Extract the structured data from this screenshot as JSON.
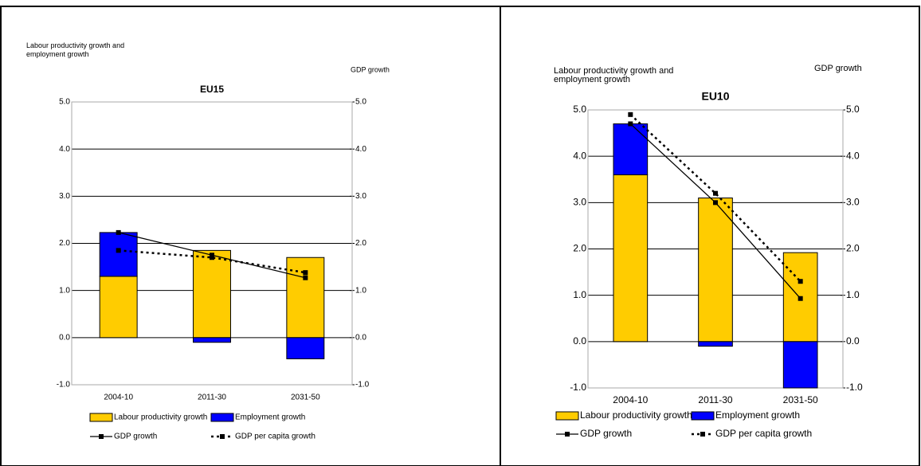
{
  "chart_data": [
    {
      "type": "bar",
      "title": "EU15",
      "ylabel": "Labour productivity growth and employment growth",
      "y2label": "GDP growth",
      "categories": [
        "2004-10",
        "2011-30",
        "2031-50"
      ],
      "ylim": [
        -1,
        5
      ],
      "yticks": [
        {
          "value": -1,
          "label": "-1.0"
        },
        {
          "value": 0,
          "label": "0.0"
        },
        {
          "value": 1,
          "label": "1.0"
        },
        {
          "value": 2,
          "label": "2.0"
        },
        {
          "value": 3,
          "label": "3.0"
        },
        {
          "value": 4,
          "label": "4.0"
        },
        {
          "value": 5,
          "label": "5.0"
        }
      ],
      "y2lim": [
        -1,
        5
      ],
      "y2ticks": [
        {
          "value": -1,
          "label": "-1.0"
        },
        {
          "value": 0,
          "label": "0.0"
        },
        {
          "value": 1,
          "label": "1.0"
        },
        {
          "value": 2,
          "label": "2.0"
        },
        {
          "value": 3,
          "label": "3.0"
        },
        {
          "value": 4,
          "label": "4.0"
        },
        {
          "value": 5,
          "label": "5.0"
        }
      ],
      "grid": true,
      "stacked": true,
      "legend": "bottom",
      "series": [
        {
          "name": "Labour productivity growth",
          "type": "bar",
          "color": "#ffcc00",
          "values": [
            1.3,
            1.85,
            1.7
          ]
        },
        {
          "name": "Employment growth",
          "type": "bar",
          "color": "#0000ff",
          "values": [
            0.93,
            -0.1,
            -0.45
          ]
        },
        {
          "name": "GDP growth",
          "type": "line",
          "axis": "y2",
          "style": "solid",
          "color": "#000000",
          "values": [
            2.23,
            1.75,
            1.27
          ]
        },
        {
          "name": "GDP per capita growth",
          "type": "line",
          "axis": "y2",
          "style": "dotted",
          "color": "#000000",
          "values": [
            1.85,
            1.7,
            1.38
          ]
        }
      ]
    },
    {
      "type": "bar",
      "title": "EU10",
      "ylabel": "Labour productivity growth and employment growth",
      "y2label": "GDP growth",
      "categories": [
        "2004-10",
        "2011-30",
        "2031-50"
      ],
      "ylim": [
        -1,
        5
      ],
      "yticks": [
        {
          "value": -1,
          "label": "-1.0"
        },
        {
          "value": 0,
          "label": "0.0"
        },
        {
          "value": 1,
          "label": "1.0"
        },
        {
          "value": 2,
          "label": "2.0"
        },
        {
          "value": 3,
          "label": "3.0"
        },
        {
          "value": 4,
          "label": "4.0"
        },
        {
          "value": 5,
          "label": "5.0"
        }
      ],
      "y2lim": [
        -1,
        5
      ],
      "y2ticks": [
        {
          "value": -1,
          "label": "-1.0"
        },
        {
          "value": 0,
          "label": "0.0"
        },
        {
          "value": 1,
          "label": "1.0"
        },
        {
          "value": 2,
          "label": "2.0"
        },
        {
          "value": 3,
          "label": "3.0"
        },
        {
          "value": 4,
          "label": "4.0"
        },
        {
          "value": 5,
          "label": "5.0"
        }
      ],
      "grid": true,
      "stacked": true,
      "legend": "bottom",
      "series": [
        {
          "name": "Labour productivity growth",
          "type": "bar",
          "color": "#ffcc00",
          "values": [
            3.6,
            3.1,
            1.92
          ]
        },
        {
          "name": "Employment growth",
          "type": "bar",
          "color": "#0000ff",
          "values": [
            1.1,
            -0.1,
            -1.0
          ]
        },
        {
          "name": "GDP growth",
          "type": "line",
          "axis": "y2",
          "style": "solid",
          "color": "#000000",
          "values": [
            4.7,
            3.0,
            0.93
          ]
        },
        {
          "name": "GDP per capita growth",
          "type": "line",
          "axis": "y2",
          "style": "dotted",
          "color": "#000000",
          "values": [
            4.9,
            3.2,
            1.3
          ]
        }
      ]
    }
  ]
}
